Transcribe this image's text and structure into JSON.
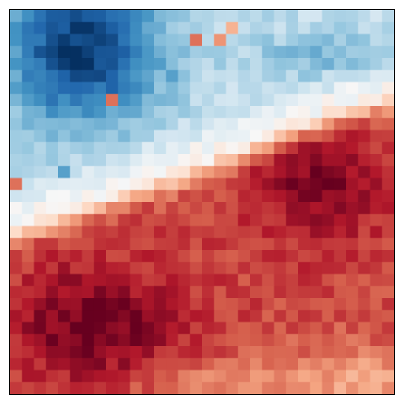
{
  "chart_data": {
    "type": "heatmap",
    "title": "",
    "xlabel": "",
    "ylabel": "",
    "colormap": "RdBu_r",
    "colormap_stops": [
      "#053061",
      "#2166ac",
      "#4393c3",
      "#92c5de",
      "#d1e5f0",
      "#f7f7f7",
      "#fddbc7",
      "#f4a582",
      "#d6604d",
      "#b2182b",
      "#67001f"
    ],
    "value_range": [
      -1,
      1
    ],
    "rows": 32,
    "cols": 32,
    "grid": false,
    "colorbar": false,
    "field_params": {
      "band_intercept": 0.56,
      "band_slope": 0.36,
      "band_width": 0.085,
      "top_blob_center": [
        0.19,
        0.1
      ],
      "top_blob_radius": [
        0.2,
        0.2
      ],
      "top_right_center": [
        0.82,
        0.12
      ],
      "hot_blob_center": [
        0.8,
        0.44
      ],
      "hot_blob_radius": [
        0.16,
        0.16
      ],
      "bottom_blob_center": [
        0.22,
        0.82
      ],
      "bottom_blob_radius": [
        0.22,
        0.15
      ],
      "noise_amplitude": 0.09,
      "seed": 1337,
      "outliers": [
        {
          "row": 2,
          "col": 15,
          "value": 0.55
        },
        {
          "row": 2,
          "col": 17,
          "value": 0.45
        },
        {
          "row": 1,
          "col": 18,
          "value": 0.35
        },
        {
          "row": 7,
          "col": 8,
          "value": 0.55
        },
        {
          "row": 5,
          "col": 13,
          "value": -0.55
        },
        {
          "row": 6,
          "col": 13,
          "value": -0.45
        },
        {
          "row": 13,
          "col": 4,
          "value": -0.55
        },
        {
          "row": 10,
          "col": 6,
          "value": -0.45
        },
        {
          "row": 14,
          "col": 0,
          "value": 0.55
        }
      ]
    }
  }
}
